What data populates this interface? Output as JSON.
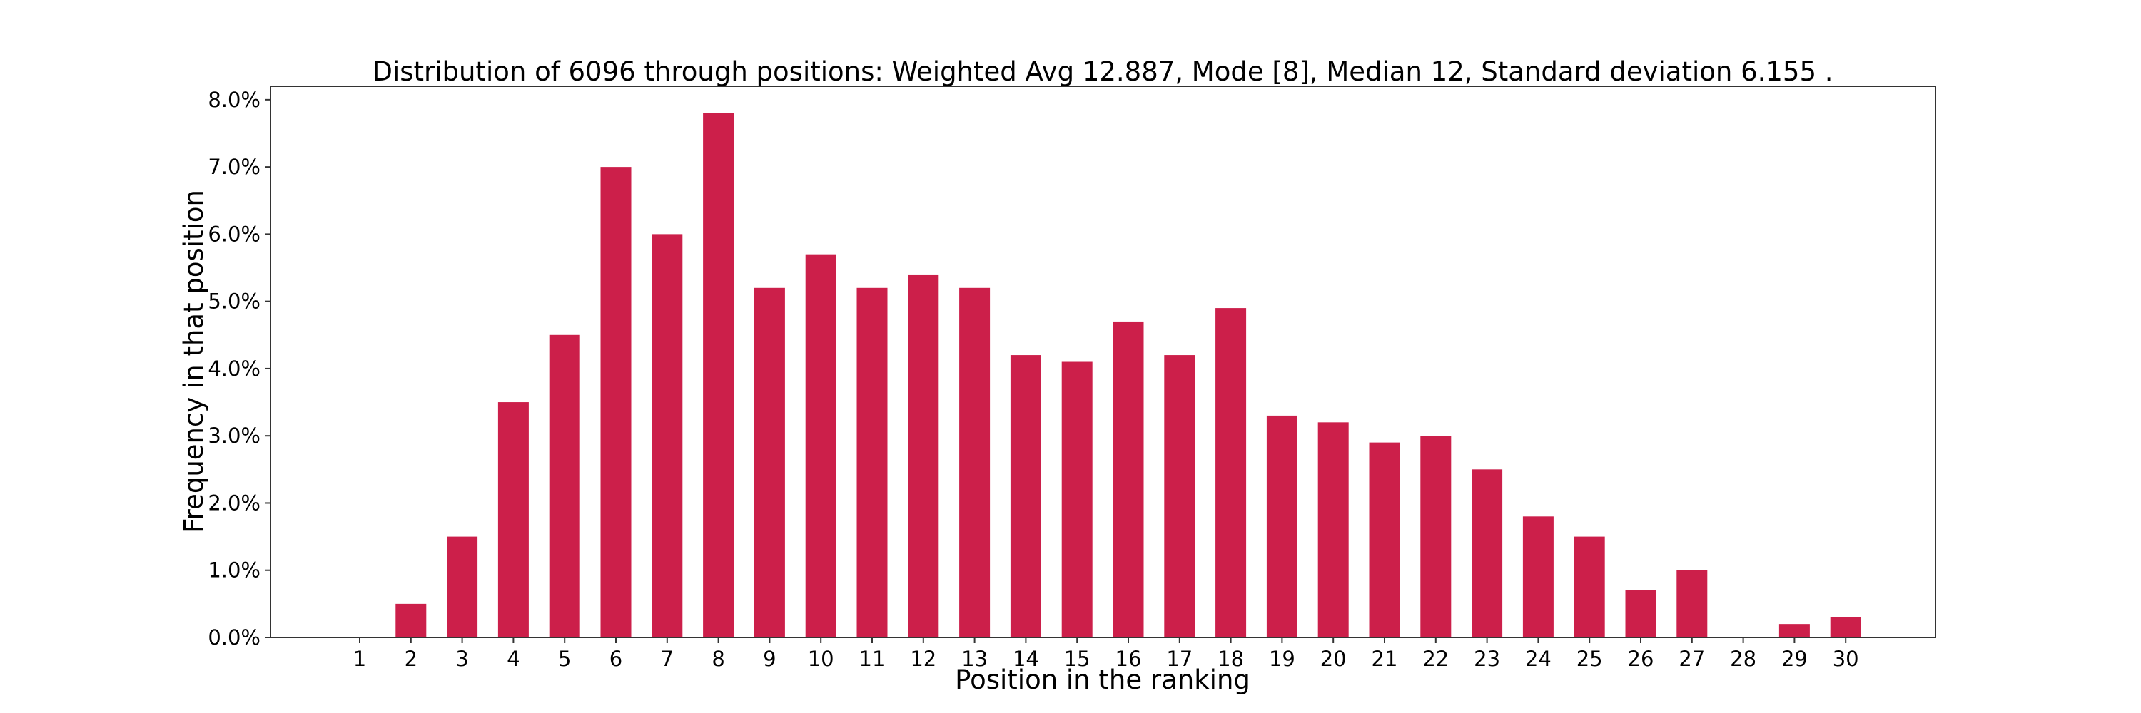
{
  "chart_data": {
    "type": "bar",
    "title": "Distribution of 6096 through positions: Weighted Avg 12.887, Mode [8], Median 12, Standard deviation 6.155 .",
    "xlabel": "Position in the ranking",
    "ylabel": "Frequency in that position",
    "categories": [
      "1",
      "2",
      "3",
      "4",
      "5",
      "6",
      "7",
      "8",
      "9",
      "10",
      "11",
      "12",
      "13",
      "14",
      "15",
      "16",
      "17",
      "18",
      "19",
      "20",
      "21",
      "22",
      "23",
      "24",
      "25",
      "26",
      "27",
      "28",
      "29",
      "30"
    ],
    "values": [
      0.0,
      0.5,
      1.5,
      3.5,
      4.5,
      7.0,
      6.0,
      7.8,
      5.2,
      5.7,
      5.2,
      5.4,
      5.2,
      4.2,
      4.1,
      4.7,
      4.2,
      4.9,
      3.3,
      3.2,
      2.9,
      3.0,
      2.5,
      1.8,
      1.5,
      0.7,
      1.0,
      0.0,
      0.2,
      0.3
    ],
    "ylim": [
      0,
      8.2
    ],
    "yticks": [
      0,
      1,
      2,
      3,
      4,
      5,
      6,
      7,
      8
    ],
    "ytick_labels": [
      "0.0%",
      "1.0%",
      "2.0%",
      "3.0%",
      "4.0%",
      "5.0%",
      "6.0%",
      "7.0%",
      "8.0%"
    ],
    "grid": false,
    "bar_color": "#cc1f4a"
  }
}
